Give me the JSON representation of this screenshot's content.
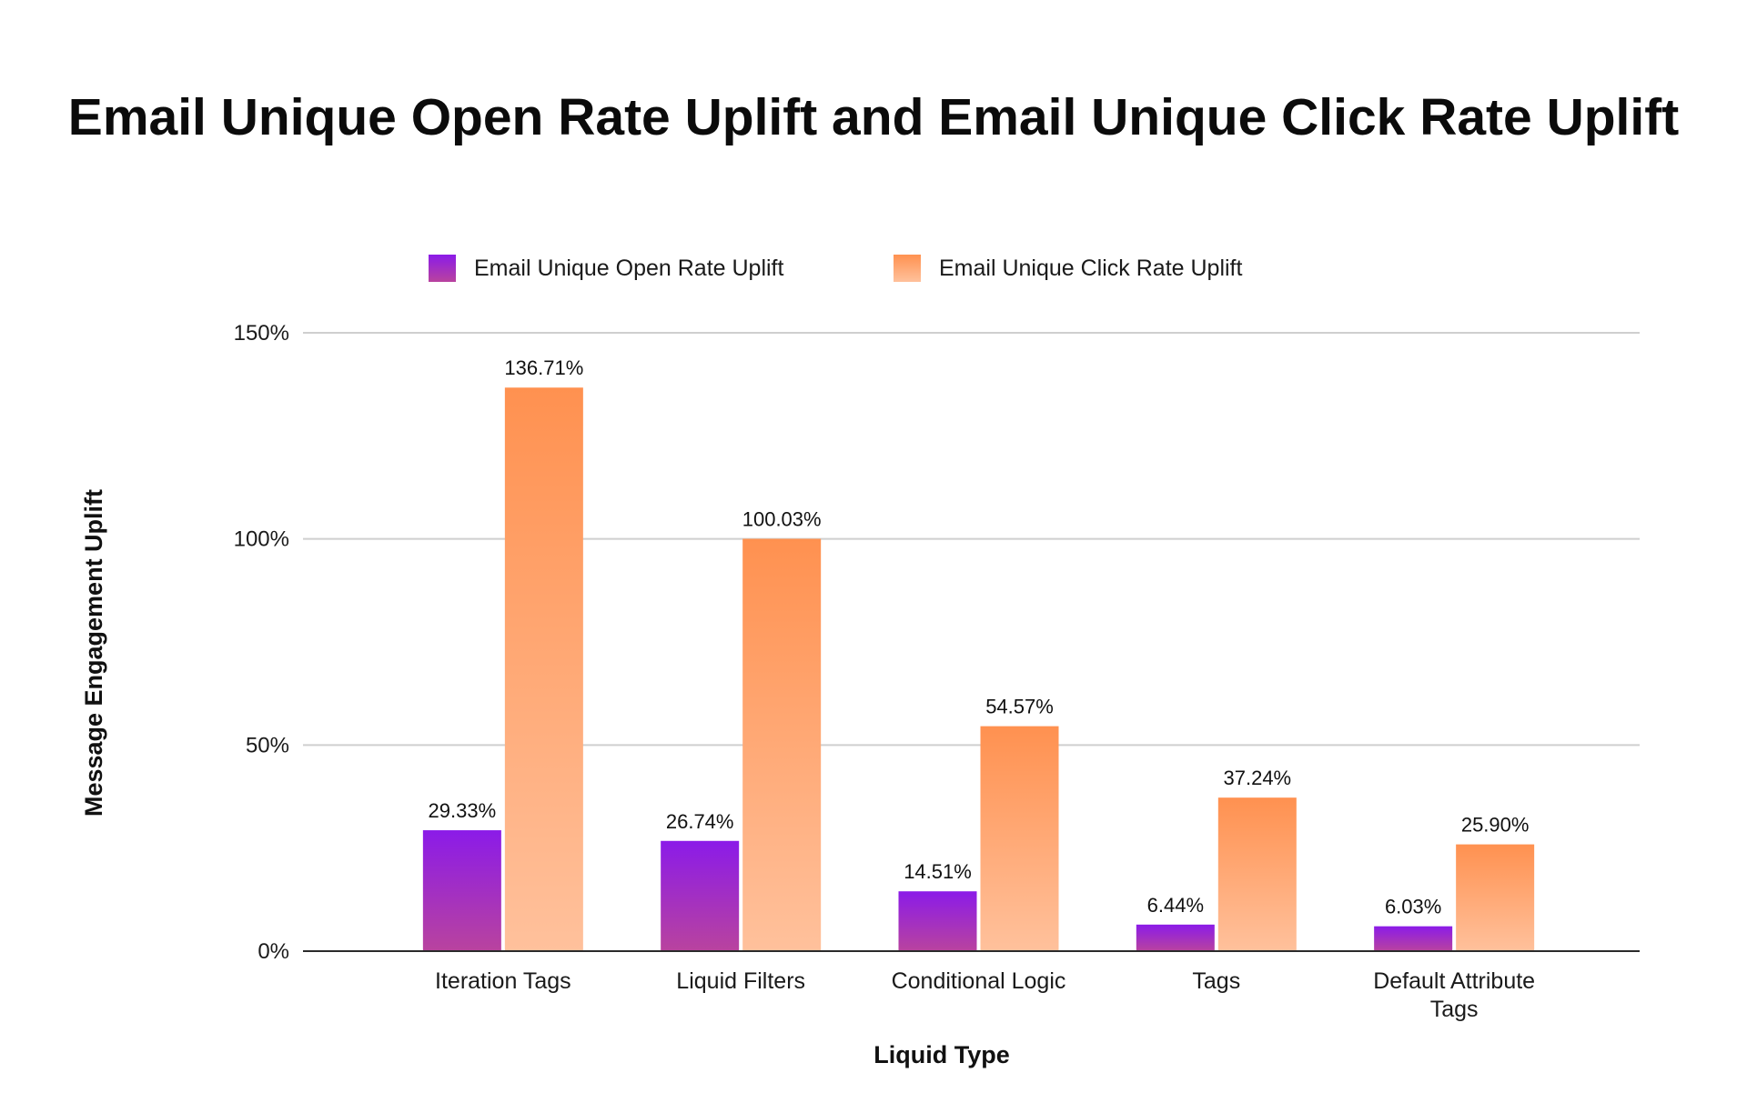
{
  "chart_data": {
    "type": "bar",
    "title": "Email Unique Open Rate Uplift and Email Unique Click Rate Uplift",
    "xlabel": "Liquid Type",
    "ylabel": "Message Engagement Uplift",
    "categories": [
      [
        "Iteration Tags"
      ],
      [
        "Liquid Filters"
      ],
      [
        "Conditional Logic"
      ],
      [
        "Tags"
      ],
      [
        "Default Attribute",
        "Tags"
      ]
    ],
    "series": [
      {
        "name": "Email Unique Open Rate Uplift",
        "values": [
          29.33,
          26.74,
          14.51,
          6.44,
          6.03
        ],
        "labels": [
          "29.33%",
          "26.74%",
          "14.51%",
          "6.44%",
          "6.03%"
        ],
        "color_top": "#8b1be8",
        "color_bottom": "#b9439e"
      },
      {
        "name": "Email Unique Click Rate Uplift",
        "values": [
          136.71,
          100.03,
          54.57,
          37.24,
          25.9
        ],
        "labels": [
          "136.71%",
          "100.03%",
          "54.57%",
          "37.24%",
          "25.90%"
        ],
        "color_top": "#ff9150",
        "color_bottom": "#ffc19c"
      }
    ],
    "ylim": [
      0,
      150
    ],
    "yticks": [
      0,
      50,
      100,
      150
    ],
    "ytick_labels": [
      "0%",
      "50%",
      "100%",
      "150%"
    ],
    "grid": true,
    "legend_position": "top-center"
  }
}
